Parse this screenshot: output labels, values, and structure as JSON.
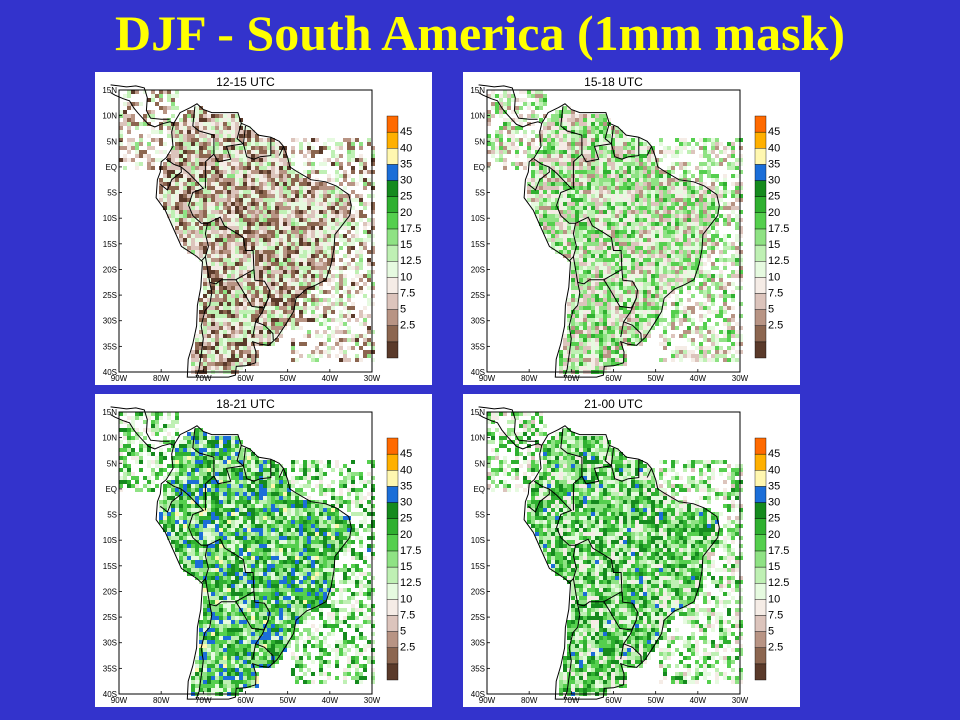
{
  "title": "DJF - South America (1mm mask)",
  "colors": {
    "background": "#3333cc",
    "title": "#ffff00",
    "scale": [
      "#5a3a2a",
      "#8c6650",
      "#b89484",
      "#dcc4bc",
      "#f5ece6",
      "#e6fae0",
      "#bff0b4",
      "#8fe284",
      "#55cf4e",
      "#2fb030",
      "#158a1e",
      "#1b6ed8",
      "#fff7b0",
      "#ffb000",
      "#ff6a00"
    ]
  },
  "legend": {
    "labels": [
      "2.5",
      "5",
      "7.5",
      "10",
      "12.5",
      "15",
      "17.5",
      "20",
      "25",
      "30",
      "35",
      "40",
      "45"
    ]
  },
  "axes": {
    "lat_labels": [
      "15N",
      "10N",
      "5N",
      "EQ",
      "5S",
      "10S",
      "15S",
      "20S",
      "25S",
      "30S",
      "35S",
      "40S"
    ],
    "lon_labels": [
      "90W",
      "80W",
      "70W",
      "60W",
      "50W",
      "40W",
      "30W"
    ]
  },
  "panels": [
    {
      "title": "12-15 UTC",
      "wet_level": 0.22
    },
    {
      "title": "15-18 UTC",
      "wet_level": 0.45
    },
    {
      "title": "18-21 UTC",
      "wet_level": 0.72
    },
    {
      "title": "21-00 UTC",
      "wet_level": 0.62
    }
  ]
}
